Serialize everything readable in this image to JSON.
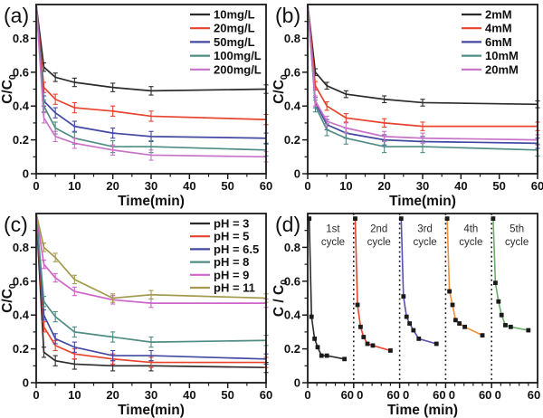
{
  "chart_data": [
    {
      "id": "a",
      "type": "line",
      "panel_label": "(a)",
      "xlabel": "Time(min)",
      "ylabel": "C/C",
      "ylabel_sub": "0",
      "xlim": [
        0,
        60
      ],
      "ylim": [
        0,
        1
      ],
      "x_ticks": [
        0,
        10,
        20,
        30,
        40,
        50,
        60
      ],
      "x_minor_step": 5,
      "y_ticks": [
        0,
        0.2,
        0.4,
        0.6,
        0.8
      ],
      "y_minor_step": 0.1,
      "grid": false,
      "legend_position": "top-right",
      "x": [
        0,
        2,
        5,
        10,
        20,
        30,
        60
      ],
      "series": [
        {
          "name": "10mg/L",
          "color": "#2b2b2b",
          "err": 0.025,
          "values": [
            1.0,
            0.63,
            0.57,
            0.54,
            0.51,
            0.49,
            0.5
          ]
        },
        {
          "name": "20mg/L",
          "color": "#e8432d",
          "err": 0.03,
          "values": [
            1.0,
            0.51,
            0.44,
            0.39,
            0.37,
            0.34,
            0.32
          ]
        },
        {
          "name": "50mg/L",
          "color": "#4348a2",
          "err": 0.03,
          "values": [
            1.0,
            0.43,
            0.36,
            0.28,
            0.24,
            0.22,
            0.21
          ]
        },
        {
          "name": "100mg/L",
          "color": "#4f8c84",
          "err": 0.035,
          "values": [
            1.0,
            0.4,
            0.27,
            0.21,
            0.16,
            0.16,
            0.14
          ]
        },
        {
          "name": "200mg/L",
          "color": "#c873c8",
          "err": 0.03,
          "values": [
            1.0,
            0.33,
            0.22,
            0.18,
            0.14,
            0.11,
            0.1
          ]
        }
      ]
    },
    {
      "id": "b",
      "type": "line",
      "panel_label": "(b)",
      "xlabel": "Time(min)",
      "ylabel": "C/C",
      "ylabel_sub": "0",
      "xlim": [
        0,
        60
      ],
      "ylim": [
        0,
        1
      ],
      "x_ticks": [
        0,
        10,
        20,
        30,
        40,
        50,
        60
      ],
      "x_minor_step": 5,
      "y_ticks": [
        0,
        0.2,
        0.4,
        0.6,
        0.8
      ],
      "y_minor_step": 0.1,
      "grid": false,
      "legend_position": "top-right",
      "x": [
        0,
        2,
        5,
        10,
        20,
        30,
        60
      ],
      "series": [
        {
          "name": "2mM",
          "color": "#2b2b2b",
          "err": 0.02,
          "values": [
            1.0,
            0.6,
            0.52,
            0.47,
            0.44,
            0.42,
            0.41
          ]
        },
        {
          "name": "4mM",
          "color": "#e8432d",
          "err": 0.025,
          "values": [
            1.0,
            0.52,
            0.4,
            0.33,
            0.3,
            0.28,
            0.28
          ]
        },
        {
          "name": "6mM",
          "color": "#4348a2",
          "err": 0.03,
          "values": [
            1.0,
            0.42,
            0.29,
            0.24,
            0.2,
            0.19,
            0.18
          ]
        },
        {
          "name": "10mM",
          "color": "#4f8c84",
          "err": 0.035,
          "values": [
            1.0,
            0.4,
            0.26,
            0.21,
            0.16,
            0.16,
            0.14
          ]
        },
        {
          "name": "20mM",
          "color": "#c873c8",
          "err": 0.03,
          "values": [
            1.0,
            0.43,
            0.31,
            0.27,
            0.22,
            0.21,
            0.2
          ]
        }
      ]
    },
    {
      "id": "c",
      "type": "line",
      "panel_label": "(c)",
      "xlabel": "Time(min)",
      "ylabel": "C/C",
      "ylabel_sub": "0",
      "xlim": [
        0,
        60
      ],
      "ylim": [
        0,
        1
      ],
      "x_ticks": [
        0,
        10,
        20,
        30,
        40,
        50,
        60
      ],
      "x_minor_step": 5,
      "y_ticks": [
        0,
        0.2,
        0.4,
        0.6,
        0.8
      ],
      "y_minor_step": 0.1,
      "grid": false,
      "legend_position": "top-right",
      "x": [
        0,
        2,
        5,
        10,
        20,
        30,
        60
      ],
      "series": [
        {
          "name": "pH = 3",
          "color": "#2b2b2b",
          "err": 0.03,
          "values": [
            1.0,
            0.18,
            0.13,
            0.11,
            0.1,
            0.1,
            0.09
          ]
        },
        {
          "name": "pH = 5",
          "color": "#e8432d",
          "err": 0.03,
          "values": [
            1.0,
            0.33,
            0.22,
            0.17,
            0.14,
            0.12,
            0.12
          ]
        },
        {
          "name": "pH = 6.5",
          "color": "#4348a2",
          "err": 0.03,
          "values": [
            1.0,
            0.4,
            0.26,
            0.21,
            0.16,
            0.16,
            0.14
          ]
        },
        {
          "name": "pH = 8",
          "color": "#4f8c84",
          "err": 0.03,
          "values": [
            1.0,
            0.48,
            0.39,
            0.3,
            0.27,
            0.24,
            0.25
          ]
        },
        {
          "name": "pH = 9",
          "color": "#cf64c9",
          "err": 0.025,
          "values": [
            1.0,
            0.7,
            0.62,
            0.54,
            0.49,
            0.47,
            0.47
          ]
        },
        {
          "name": "pH = 11",
          "color": "#a39a4e",
          "err": 0.025,
          "values": [
            1.0,
            0.8,
            0.74,
            0.61,
            0.5,
            0.52,
            0.5
          ]
        }
      ]
    },
    {
      "id": "d",
      "type": "line-cycles",
      "panel_label": "(d)",
      "xlabel": "Time (min)",
      "ylabel": "C / C",
      "ylabel_sub": "0",
      "ylim": [
        0,
        1
      ],
      "y_ticks": [
        0,
        0.2,
        0.4,
        0.6,
        0.8
      ],
      "y_minor_step": 0.1,
      "grid": false,
      "cycle_length": 60,
      "cycle_tick_labels": [
        "0",
        "60"
      ],
      "x_minor_step": 12,
      "separator_style": "dotted",
      "marker": "black-square",
      "cycles": [
        {
          "name": "1st cycle",
          "label_lines": [
            "1st",
            "cycle"
          ],
          "color": "#2b2b2b",
          "x": [
            2,
            5,
            9,
            13,
            18,
            25,
            48
          ],
          "values": [
            0.97,
            0.39,
            0.26,
            0.21,
            0.16,
            0.16,
            0.14
          ]
        },
        {
          "name": "2nd cycle",
          "label_lines": [
            "2nd",
            "cycle"
          ],
          "color": "#e8432d",
          "x": [
            2,
            5,
            9,
            13,
            18,
            25,
            48
          ],
          "values": [
            0.97,
            0.46,
            0.33,
            0.27,
            0.23,
            0.22,
            0.19
          ]
        },
        {
          "name": "3rd cycle",
          "label_lines": [
            "3rd",
            "cycle"
          ],
          "color": "#5a50b4",
          "x": [
            2,
            5,
            9,
            13,
            18,
            25,
            48
          ],
          "values": [
            0.97,
            0.51,
            0.39,
            0.35,
            0.31,
            0.26,
            0.23
          ]
        },
        {
          "name": "4th cycle",
          "label_lines": [
            "4th",
            "cycle"
          ],
          "color": "#f0913c",
          "x": [
            2,
            5,
            9,
            13,
            18,
            25,
            48
          ],
          "values": [
            0.97,
            0.54,
            0.46,
            0.37,
            0.35,
            0.33,
            0.28
          ]
        },
        {
          "name": "5th cycle",
          "label_lines": [
            "5th",
            "cycle"
          ],
          "color": "#6cab6c",
          "x": [
            2,
            5,
            9,
            13,
            18,
            25,
            48
          ],
          "values": [
            0.97,
            0.59,
            0.48,
            0.4,
            0.34,
            0.33,
            0.31
          ]
        }
      ]
    }
  ]
}
